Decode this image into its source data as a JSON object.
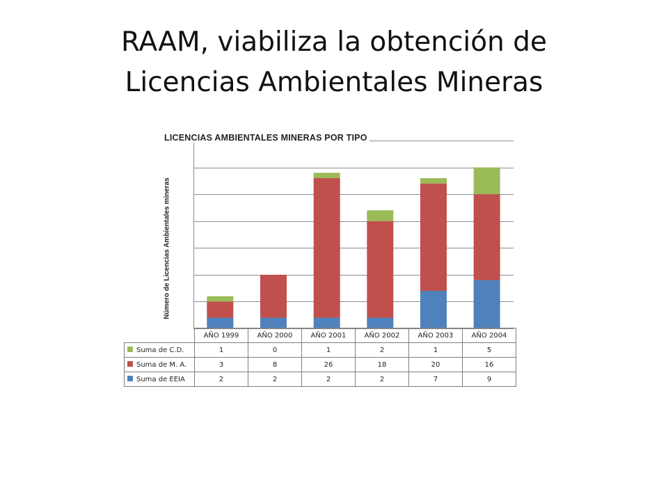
{
  "slide": {
    "title_line1": "RAAM, viabiliza la obtención de",
    "title_line2": "Licencias Ambientales Mineras"
  },
  "chart_data": {
    "type": "bar",
    "stacked": true,
    "title": "LICENCIAS AMBIENTALES MINERAS POR TIPO",
    "xlabel": "",
    "ylabel": "Número de Licencias Ambientales mineras",
    "categories": [
      "AÑO 1999",
      "AÑO 2000",
      "AÑO 2001",
      "AÑO 2002",
      "AÑO 2003",
      "AÑO 2004"
    ],
    "ylim": [
      0,
      35
    ],
    "y_gridline_step": 5,
    "y_tick_labels_shown": false,
    "grid": true,
    "legend_position": "data-table",
    "series": [
      {
        "name": "Suma de C.D.",
        "values": [
          1,
          0,
          1,
          2,
          1,
          5
        ],
        "color": "#9bbb59"
      },
      {
        "name": "Suma de M. A.",
        "values": [
          3,
          8,
          26,
          18,
          20,
          16
        ],
        "color": "#c0504d"
      },
      {
        "name": "Suma de EEIA",
        "values": [
          2,
          2,
          2,
          2,
          7,
          9
        ],
        "color": "#4f81bd"
      }
    ],
    "stack_order_bottom_to_top": [
      "Suma de EEIA",
      "Suma de M. A.",
      "Suma de C.D."
    ]
  }
}
